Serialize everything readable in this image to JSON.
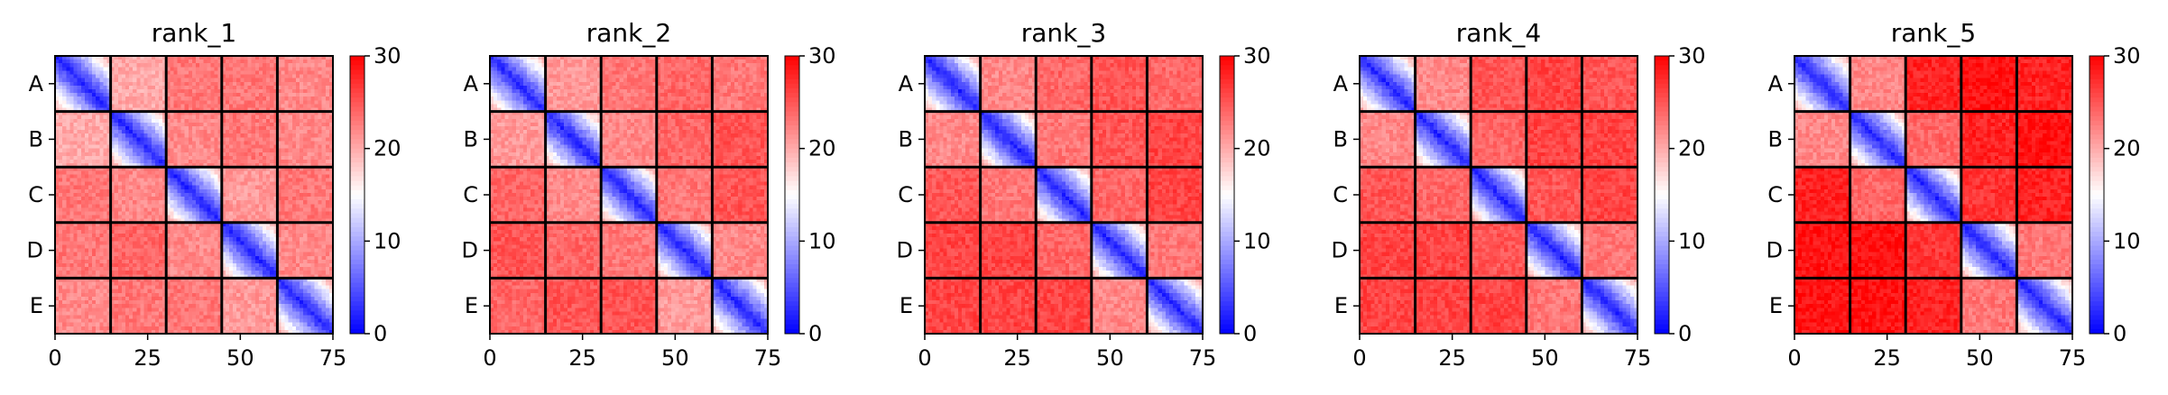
{
  "chart_data": [
    {
      "type": "heatmap",
      "title": "rank_1",
      "row_labels": [
        "A",
        "B",
        "C",
        "D",
        "E"
      ],
      "block_size": 15,
      "matrix_size": 75,
      "xticks": [
        0,
        25,
        50,
        75
      ],
      "colorbar": {
        "ticks": [
          0,
          10,
          20,
          30
        ],
        "range": [
          0,
          30
        ],
        "colormap": "bwr"
      },
      "diagonal_gradient": [
        2,
        20
      ],
      "block_means": [
        [
          null,
          20,
          23,
          23,
          22
        ],
        [
          20,
          null,
          22,
          23,
          22
        ],
        [
          23,
          22,
          null,
          21,
          23
        ],
        [
          23,
          24,
          22,
          null,
          22
        ],
        [
          22,
          23,
          23,
          21,
          null
        ]
      ]
    },
    {
      "type": "heatmap",
      "title": "rank_2",
      "row_labels": [
        "A",
        "B",
        "C",
        "D",
        "E"
      ],
      "block_size": 15,
      "matrix_size": 75,
      "xticks": [
        0,
        25,
        50,
        75
      ],
      "colorbar": {
        "ticks": [
          0,
          10,
          20,
          30
        ],
        "range": [
          0,
          30
        ],
        "colormap": "bwr"
      },
      "diagonal_gradient": [
        2,
        20
      ],
      "block_means": [
        [
          null,
          21,
          23,
          24,
          23
        ],
        [
          21,
          null,
          22,
          24,
          25
        ],
        [
          24,
          22,
          null,
          23,
          25
        ],
        [
          25,
          24,
          23,
          null,
          22
        ],
        [
          24,
          25,
          25,
          21,
          null
        ]
      ]
    },
    {
      "type": "heatmap",
      "title": "rank_3",
      "row_labels": [
        "A",
        "B",
        "C",
        "D",
        "E"
      ],
      "block_size": 15,
      "matrix_size": 75,
      "xticks": [
        0,
        25,
        50,
        75
      ],
      "colorbar": {
        "ticks": [
          0,
          10,
          20,
          30
        ],
        "range": [
          0,
          30
        ],
        "colormap": "bwr"
      },
      "diagonal_gradient": [
        2,
        20
      ],
      "block_means": [
        [
          null,
          22,
          24,
          25,
          24
        ],
        [
          22,
          null,
          23,
          25,
          26
        ],
        [
          25,
          23,
          null,
          24,
          26
        ],
        [
          26,
          26,
          24,
          null,
          23
        ],
        [
          26,
          26,
          26,
          22,
          null
        ]
      ]
    },
    {
      "type": "heatmap",
      "title": "rank_4",
      "row_labels": [
        "A",
        "B",
        "C",
        "D",
        "E"
      ],
      "block_size": 15,
      "matrix_size": 75,
      "xticks": [
        0,
        25,
        50,
        75
      ],
      "colorbar": {
        "ticks": [
          0,
          10,
          20,
          30
        ],
        "range": [
          0,
          30
        ],
        "colormap": "bwr"
      },
      "diagonal_gradient": [
        2,
        20
      ],
      "block_means": [
        [
          null,
          22,
          25,
          26,
          25
        ],
        [
          22,
          null,
          24,
          26,
          26
        ],
        [
          25,
          24,
          null,
          25,
          26
        ],
        [
          26,
          26,
          25,
          null,
          23
        ],
        [
          26,
          26,
          26,
          23,
          null
        ]
      ]
    },
    {
      "type": "heatmap",
      "title": "rank_5",
      "row_labels": [
        "A",
        "B",
        "C",
        "D",
        "E"
      ],
      "block_size": 15,
      "matrix_size": 75,
      "xticks": [
        0,
        25,
        50,
        75
      ],
      "colorbar": {
        "ticks": [
          0,
          10,
          20,
          30
        ],
        "range": [
          0,
          30
        ],
        "colormap": "bwr"
      },
      "diagonal_gradient": [
        2,
        20
      ],
      "block_means": [
        [
          null,
          22,
          28,
          29,
          28
        ],
        [
          22,
          null,
          24,
          28,
          29
        ],
        [
          28,
          24,
          null,
          27,
          28
        ],
        [
          29,
          29,
          27,
          null,
          23
        ],
        [
          29,
          29,
          28,
          23,
          null
        ]
      ]
    }
  ]
}
